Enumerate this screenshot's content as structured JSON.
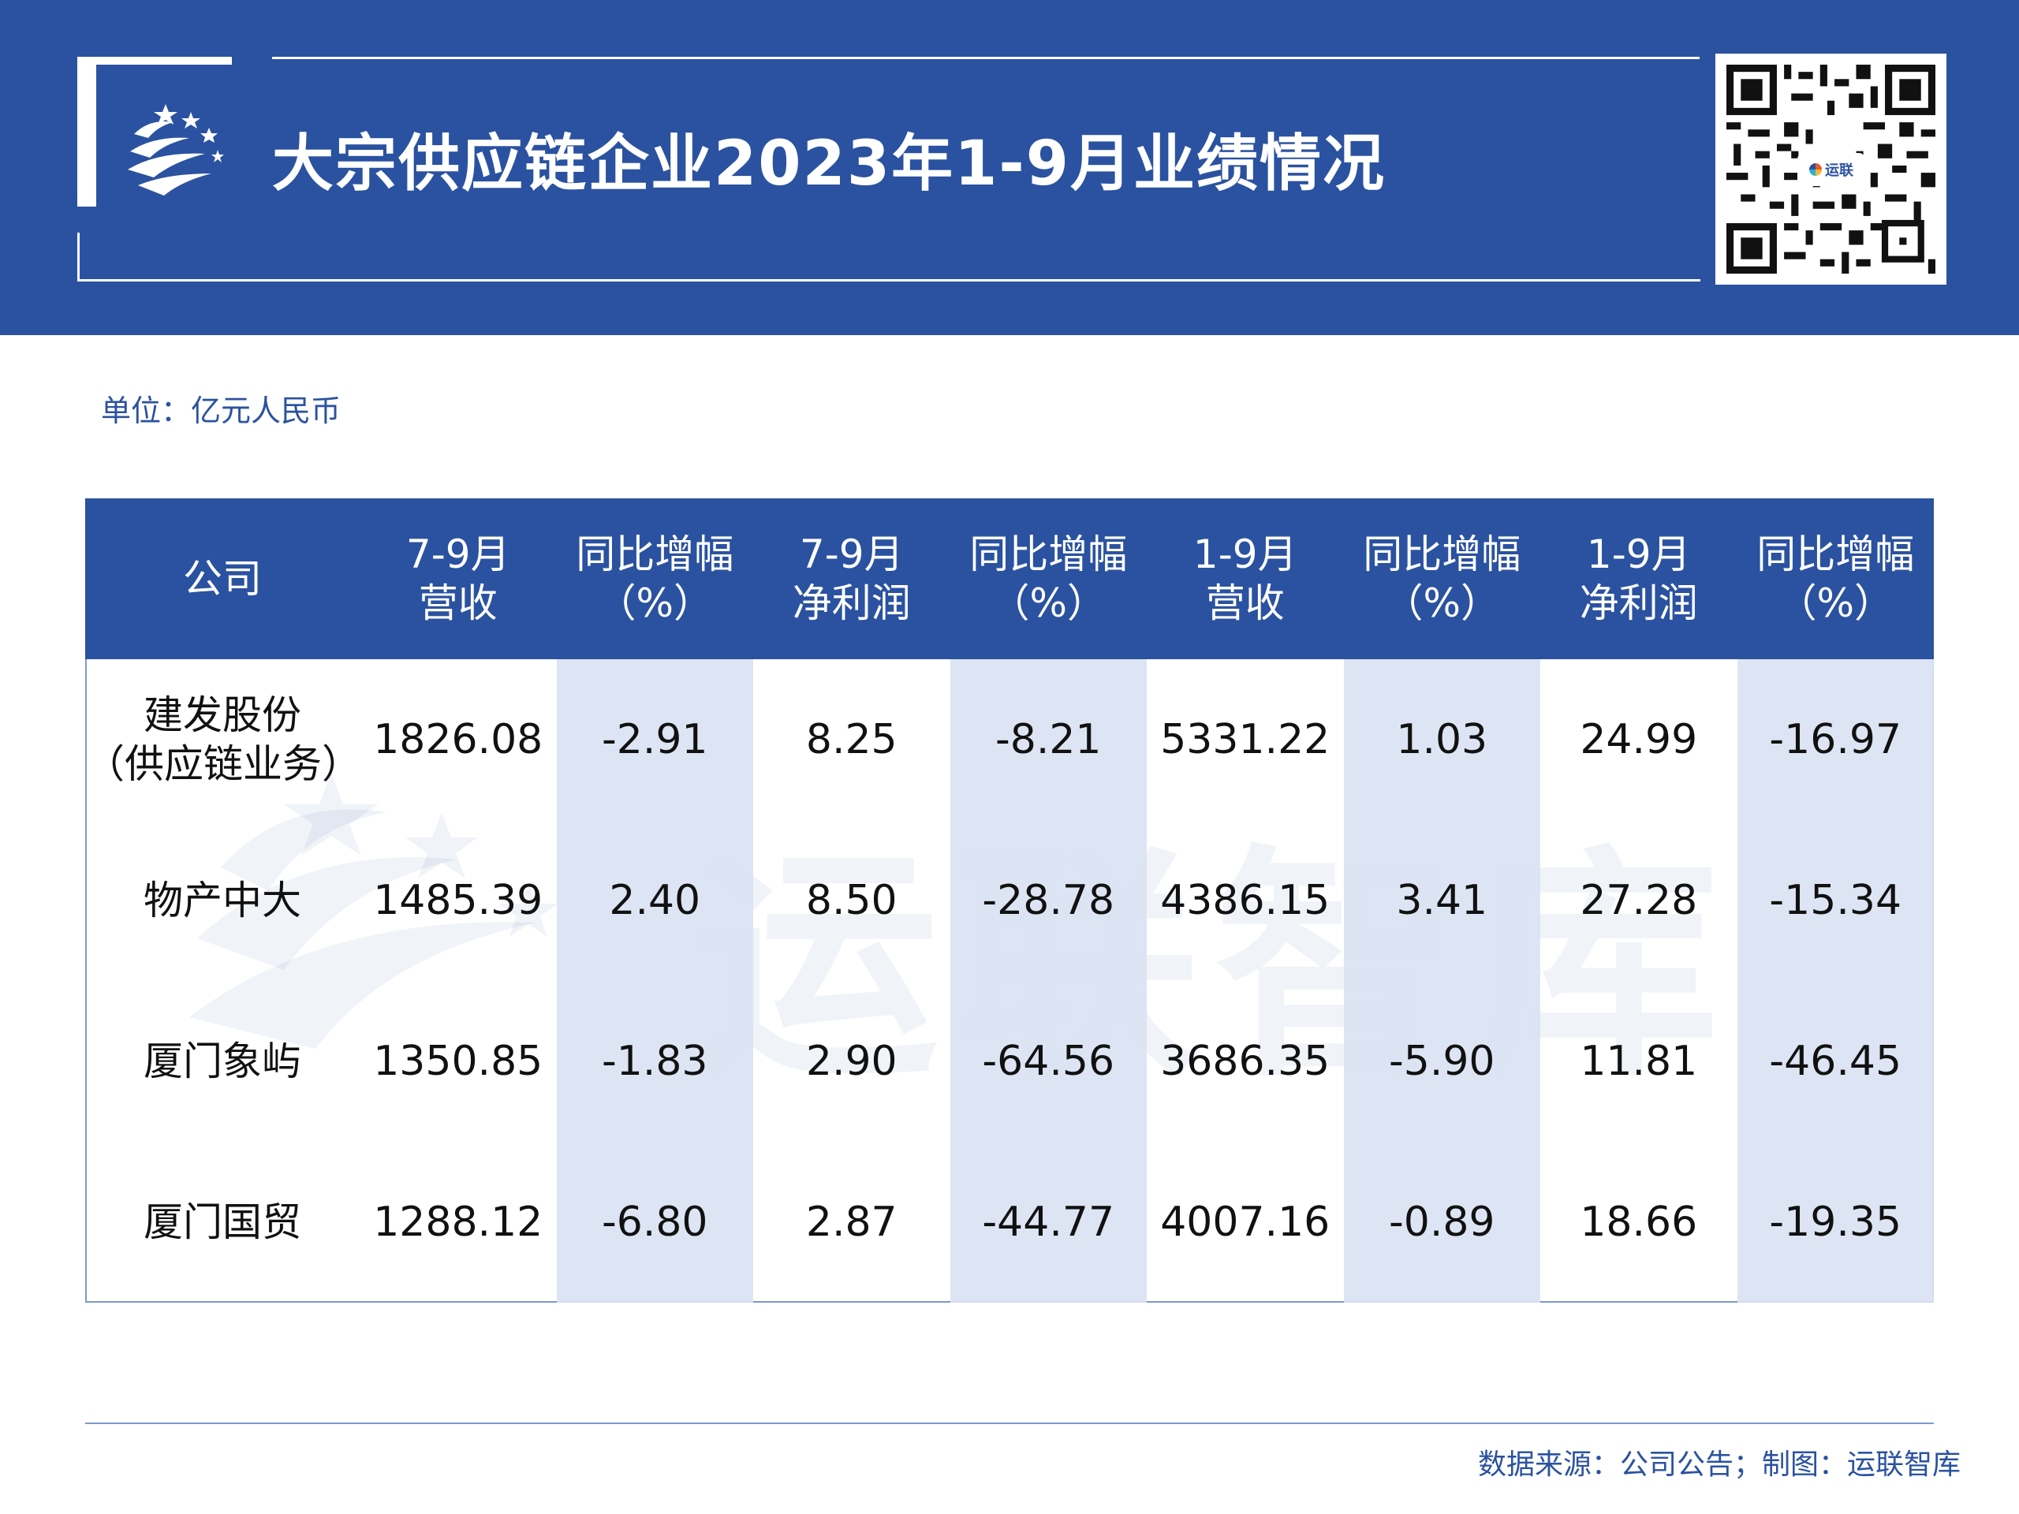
{
  "header": {
    "title": "大宗供应链企业2023年1-9月业绩情况",
    "qr_badge": "运联"
  },
  "unit": "单位：亿元人民币",
  "table": {
    "headers": [
      [
        "公司",
        ""
      ],
      [
        "7-9月",
        "营收"
      ],
      [
        "同比增幅",
        "（%）"
      ],
      [
        "7-9月",
        "净利润"
      ],
      [
        "同比增幅",
        "（%）"
      ],
      [
        "1-9月",
        "营收"
      ],
      [
        "同比增幅",
        "（%）"
      ],
      [
        "1-9月",
        "净利润"
      ],
      [
        "同比增幅",
        "（%）"
      ]
    ],
    "rows": [
      {
        "company": [
          "建发股份",
          "（供应链业务）"
        ],
        "values": [
          "1826.08",
          "-2.91",
          "8.25",
          "-8.21",
          "5331.22",
          "1.03",
          "24.99",
          "-16.97"
        ]
      },
      {
        "company": [
          "物产中大",
          ""
        ],
        "values": [
          "1485.39",
          "2.40",
          "8.50",
          "-28.78",
          "4386.15",
          "3.41",
          "27.28",
          "-15.34"
        ]
      },
      {
        "company": [
          "厦门象屿",
          ""
        ],
        "values": [
          "1350.85",
          "-1.83",
          "2.90",
          "-64.56",
          "3686.35",
          "-5.90",
          "11.81",
          "-46.45"
        ]
      },
      {
        "company": [
          "厦门国贸",
          ""
        ],
        "values": [
          "1288.12",
          "-6.80",
          "2.87",
          "-44.77",
          "4007.16",
          "-0.89",
          "18.66",
          "-19.35"
        ]
      }
    ]
  },
  "watermark": "运联智库",
  "source": "数据来源：公司公告；制图：运联智库",
  "colors": {
    "brand_blue": "#2b52a0",
    "shade": "#dae3f3",
    "border": "#7d98cf"
  }
}
